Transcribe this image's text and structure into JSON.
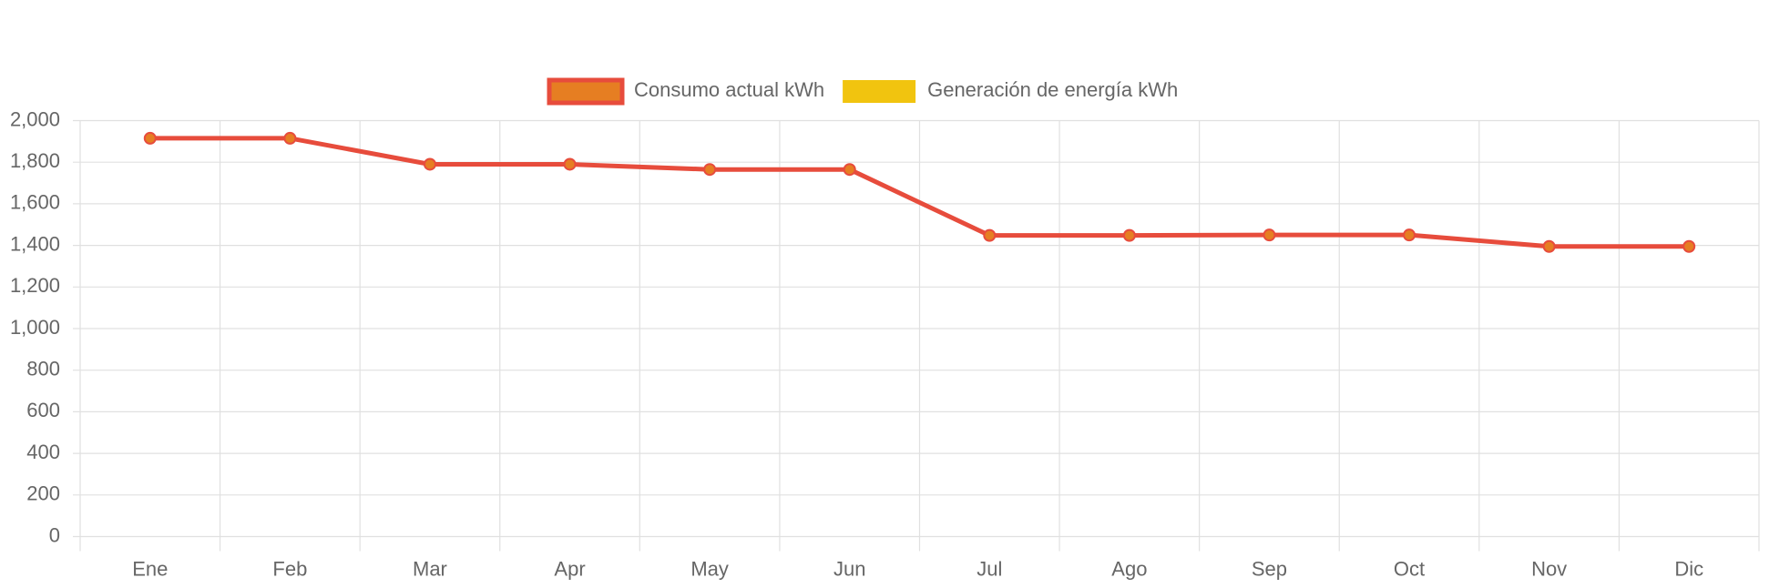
{
  "chart_data": {
    "type": "line",
    "categories": [
      "Ene",
      "Feb",
      "Mar",
      "Apr",
      "May",
      "Jun",
      "Jul",
      "Ago",
      "Sep",
      "Oct",
      "Nov",
      "Dic"
    ],
    "series": [
      {
        "name": "Consumo actual kWh",
        "color": "#e74c3c",
        "point_color": "#e67e22",
        "values": [
          1915,
          1915,
          1790,
          1790,
          1765,
          1765,
          1448,
          1448,
          1450,
          1450,
          1395,
          1395
        ]
      },
      {
        "name": "Generación de energía kWh",
        "color": "#f1c40f",
        "point_color": "#f1c40f",
        "values": [
          null,
          null,
          null,
          null,
          null,
          null,
          null,
          null,
          null,
          null,
          null,
          null
        ]
      }
    ],
    "ylim": [
      0,
      2000
    ],
    "yticks": [
      0,
      200,
      400,
      600,
      800,
      {
        "value": 1000,
        "label": "1,000"
      },
      {
        "value": 1200,
        "label": "1,200"
      },
      {
        "value": 1400,
        "label": "1,400"
      },
      {
        "value": 1600,
        "label": "1,600"
      },
      {
        "value": 1800,
        "label": "1,800"
      },
      {
        "value": 2000,
        "label": "2,000"
      }
    ],
    "grid": true,
    "legend": "top"
  }
}
